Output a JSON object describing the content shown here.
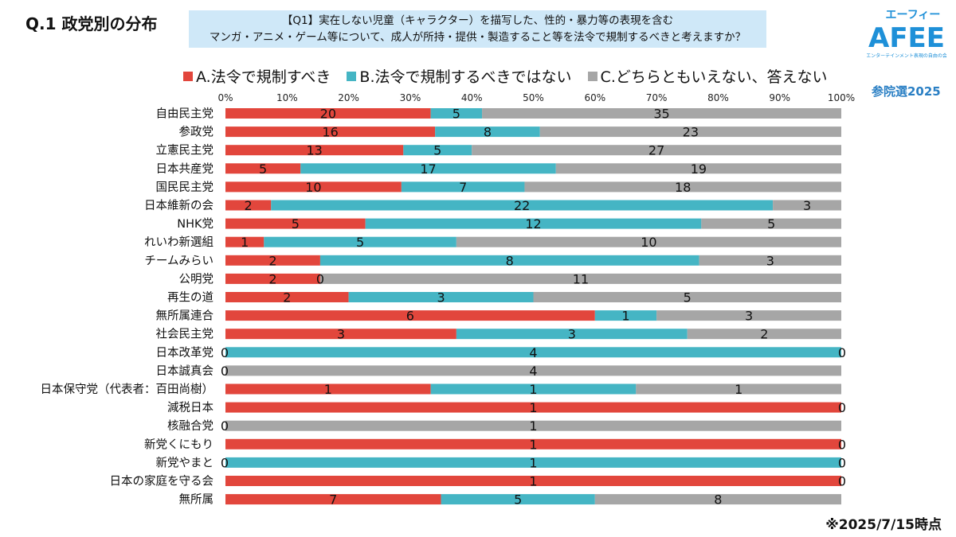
{
  "page": {
    "title": "Q.1 政党別の分布",
    "question_line1": "【Q1】実在しない児童（キャラクター）を描写した、性的・暴力等の表現を含む",
    "question_line2": "マンガ・アニメ・ゲーム等について、成人が所持・提供・製造すること等を法令で規制するべきと考えますか？",
    "logo_text": "AFEE",
    "logo_top": "エーフィー",
    "logo_sub": "エンターテインメント表現の自由の会",
    "election_label": "参院選2025",
    "footnote": "※2025/7/15時点"
  },
  "chart_data": {
    "type": "bar",
    "orientation": "horizontal",
    "stacked": "percent",
    "title": "Q.1 政党別の分布",
    "x_ticks": [
      "0%",
      "10%",
      "20%",
      "30%",
      "40%",
      "50%",
      "60%",
      "70%",
      "80%",
      "90%",
      "100%"
    ],
    "xlim": [
      0,
      100
    ],
    "legend_position": "top",
    "categories": [
      "自由民主党",
      "参政党",
      "立憲民主党",
      "日本共産党",
      "国民民主党",
      "日本維新の会",
      "NHK党",
      "れいわ新選組",
      "チームみらい",
      "公明党",
      "再生の道",
      "無所属連合",
      "社会民主党",
      "日本改革党",
      "日本誠真会",
      "日本保守党（代表者：百田尚樹）",
      "減税日本",
      "核融合党",
      "新党くにもり",
      "新党やまと",
      "日本の家庭を守る会",
      "無所属"
    ],
    "series": [
      {
        "name": "A.法令で規制すべき",
        "color": "#e2463c",
        "values": [
          20,
          16,
          13,
          5,
          10,
          2,
          5,
          1,
          2,
          2,
          2,
          6,
          3,
          0,
          0,
          1,
          1,
          0,
          1,
          0,
          1,
          7
        ]
      },
      {
        "name": "B.法令で規制するべきではない",
        "color": "#45b5c4",
        "values": [
          5,
          8,
          5,
          17,
          7,
          22,
          12,
          5,
          8,
          0,
          3,
          1,
          3,
          4,
          0,
          1,
          0,
          0,
          0,
          1,
          0,
          5
        ]
      },
      {
        "name": "C.どちらともいえない、答えない",
        "color": "#a6a6a6",
        "values": [
          35,
          23,
          27,
          19,
          18,
          3,
          5,
          10,
          3,
          11,
          5,
          3,
          2,
          0,
          4,
          1,
          0,
          1,
          0,
          0,
          0,
          8
        ]
      }
    ],
    "label_overrides": [
      {
        "row": 13,
        "labels": [
          "0",
          "4",
          "0"
        ]
      },
      {
        "row": 14,
        "labels": [
          "0",
          "",
          "4"
        ]
      },
      {
        "row": 16,
        "labels": [
          "1",
          "",
          "0"
        ]
      },
      {
        "row": 17,
        "labels": [
          "0",
          "",
          "1"
        ]
      },
      {
        "row": 18,
        "labels": [
          "1",
          "",
          "0"
        ]
      },
      {
        "row": 19,
        "labels": [
          "0",
          "1",
          "0"
        ]
      },
      {
        "row": 20,
        "labels": [
          "1",
          "",
          "0"
        ]
      }
    ]
  }
}
